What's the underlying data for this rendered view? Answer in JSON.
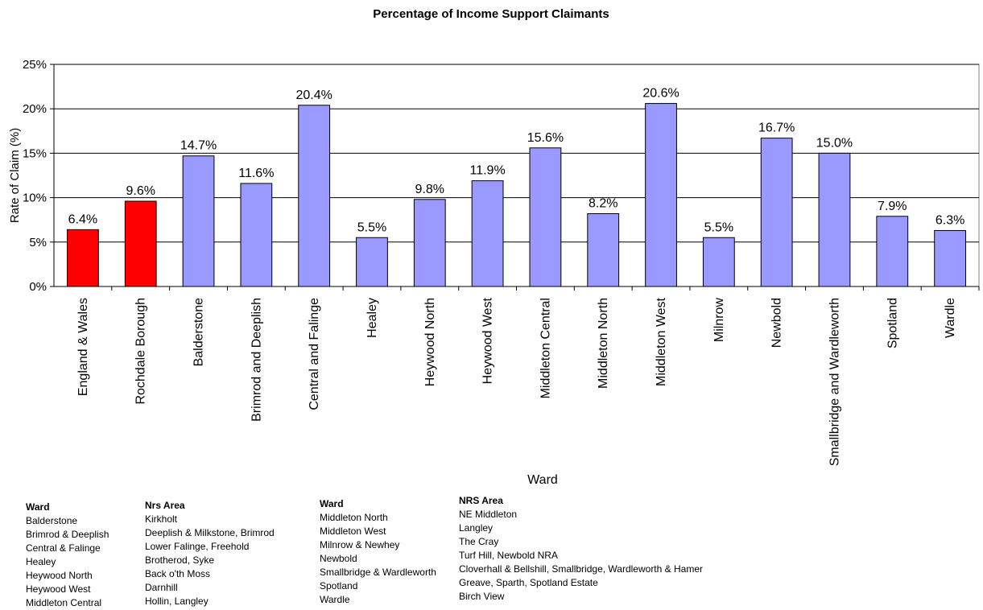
{
  "chart_data": {
    "type": "bar",
    "title": "Percentage of Income Support Claimants",
    "xlabel": "Ward",
    "ylabel": "Rate of Claim (%)",
    "ylim": [
      0,
      25
    ],
    "yticks": [
      0,
      5,
      10,
      15,
      20,
      25
    ],
    "ytick_labels": [
      "0%",
      "5%",
      "10%",
      "15%",
      "20%",
      "25%"
    ],
    "grid": true,
    "legend": "none",
    "colors": {
      "highlight": "#ff0000",
      "default": "#9999ff",
      "edge": "#000000"
    },
    "categories": [
      "England & Wales",
      "Rochdale Borough",
      "Balderstone",
      "Brimrod and Deeplish",
      "Central and Falinge",
      "Healey",
      "Heywood North",
      "Heywood West",
      "Middleton Central",
      "Middleton North",
      "Middleton West",
      "Milnrow",
      "Newbold",
      "Smallbridge and Wardleworth",
      "Spotland",
      "Wardle"
    ],
    "values": [
      6.4,
      9.6,
      14.7,
      11.6,
      20.4,
      5.5,
      9.8,
      11.9,
      15.6,
      8.2,
      20.6,
      5.5,
      16.7,
      15.0,
      7.9,
      6.3
    ],
    "value_labels": [
      "6.4%",
      "9.6%",
      "14.7%",
      "11.6%",
      "20.4%",
      "5.5%",
      "9.8%",
      "11.9%",
      "15.6%",
      "8.2%",
      "20.6%",
      "5.5%",
      "16.7%",
      "15.0%",
      "7.9%",
      "6.3%"
    ],
    "highlighted": [
      true,
      true,
      false,
      false,
      false,
      false,
      false,
      false,
      false,
      false,
      false,
      false,
      false,
      false,
      false,
      false
    ]
  },
  "area_table_1": {
    "ward_header": "Ward",
    "area_header": "Nrs Area",
    "wards": [
      "Balderstone",
      "Brimrod & Deeplish",
      "Central & Falinge",
      "Healey",
      "Heywood North",
      "Heywood West",
      "Middleton Central"
    ],
    "areas": [
      "Kirkholt",
      "Deeplish & Milkstone, Brimrod",
      "Lower Falinge, Freehold",
      "Brotherod, Syke",
      "Back o'th Moss",
      "Darnhill",
      "Hollin, Langley"
    ]
  },
  "area_table_2": {
    "ward_header": "Ward",
    "area_header": "NRS Area",
    "wards": [
      "Middleton North",
      "Middleton West",
      "Milnrow & Newhey",
      "Newbold",
      "Smallbridge & Wardleworth",
      "Spotland",
      "Wardle"
    ],
    "areas": [
      "NE Middleton",
      "Langley",
      "The Cray",
      "Turf Hill, Newbold NRA",
      "Cloverhall & Bellshill, Smallbridge, Wardleworth & Hamer",
      "Greave, Sparth, Spotland Estate",
      "Birch View"
    ]
  }
}
